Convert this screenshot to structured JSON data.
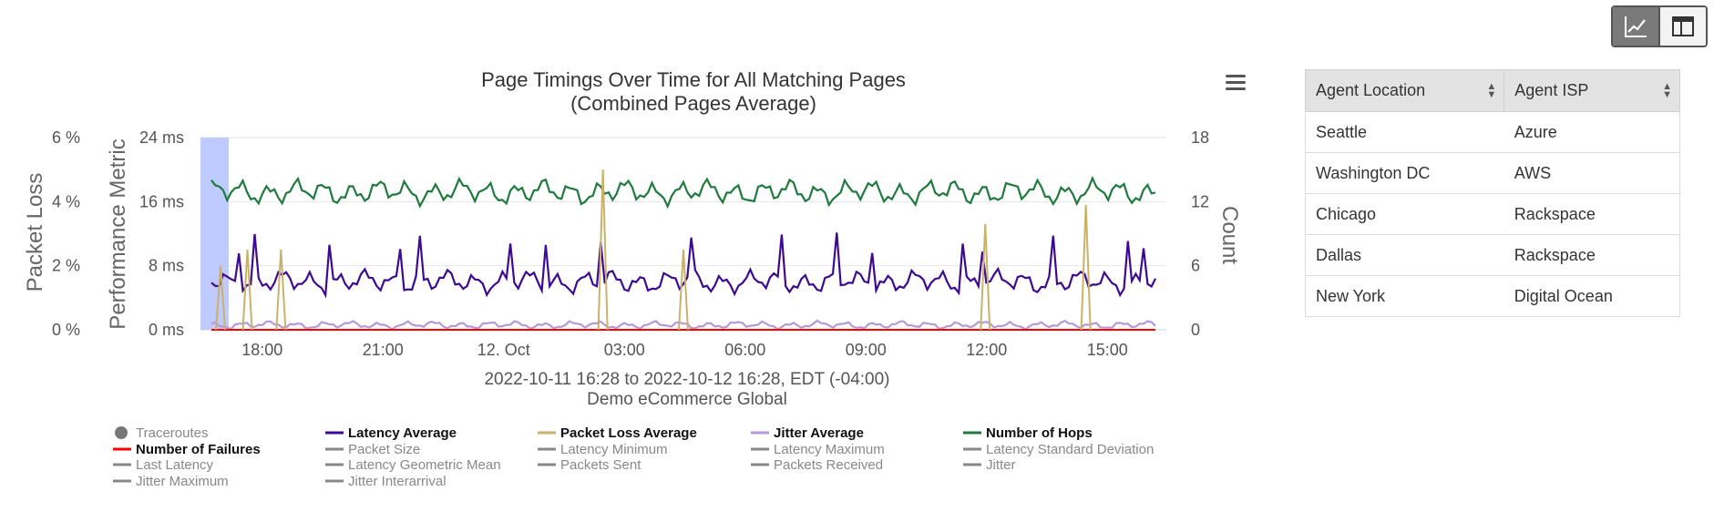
{
  "view_toggle": {
    "chart_icon": "line-chart-icon",
    "table_icon": "table-layout-icon"
  },
  "menu_icon": "hamburger-menu-icon",
  "chart_data": {
    "type": "line",
    "title": "Page Timings Over Time for All Matching Pages",
    "subtitle": "(Combined Pages Average)",
    "x_range_label": "2022-10-11 16:28 to 2022-10-12 16:28, EDT (-04:00)",
    "caption": "Demo eCommerce Global",
    "x_ticks": [
      "18:00",
      "21:00",
      "12. Oct",
      "03:00",
      "06:00",
      "09:00",
      "12:00",
      "15:00"
    ],
    "axes": {
      "packet_loss": {
        "label": "Packet Loss",
        "ticks": [
          "6 %",
          "4 %",
          "2 %",
          "0 %"
        ],
        "range": [
          0,
          6
        ]
      },
      "performance": {
        "label": "Performance Metric",
        "ticks": [
          "24 ms",
          "16 ms",
          "8 ms",
          "0 ms"
        ],
        "range": [
          0,
          24
        ]
      },
      "count": {
        "label": "Count",
        "ticks": [
          "18",
          "12",
          "6",
          "0"
        ],
        "range": [
          0,
          18
        ]
      }
    },
    "grid": true,
    "highlight_band_color": "#bfcbff",
    "series": [
      {
        "name": "Number of Hops",
        "color": "#1f7a3e",
        "axis": "count",
        "baseline": 12.9,
        "amplitude": 1.2
      },
      {
        "name": "Latency Average",
        "color": "#3d0a91",
        "axis": "performance",
        "baseline": 6.0,
        "amplitude": 1.5
      },
      {
        "name": "Jitter Average",
        "color": "#b49ad8",
        "axis": "performance",
        "baseline": 0.6,
        "amplitude": 0.5
      },
      {
        "name": "Packet Loss Average",
        "color": "#c9b16a",
        "axis": "packet_loss",
        "baseline": 0,
        "amplitude": 0
      },
      {
        "name": "Number of Failures",
        "color": "#ff0000",
        "axis": "count",
        "baseline": 0,
        "amplitude": 0
      }
    ],
    "packet_loss_spikes": [
      {
        "x": "16:58",
        "value": 2.0
      },
      {
        "x": "17:38",
        "value": 2.5
      },
      {
        "x": "18:28",
        "value": 2.5
      },
      {
        "x": "02:28",
        "value": 5.0
      },
      {
        "x": "04:28",
        "value": 2.5
      },
      {
        "x": "11:58",
        "value": 3.3
      },
      {
        "x": "14:28",
        "value": 3.9
      }
    ],
    "legend": [
      {
        "label": "Traceroutes",
        "color": "#777777",
        "marker": "circle",
        "bold": false
      },
      {
        "label": "Latency Average",
        "color": "#3d0a91",
        "marker": "line",
        "bold": true
      },
      {
        "label": "Packet Loss Average",
        "color": "#c9b16a",
        "marker": "line",
        "bold": true
      },
      {
        "label": "Jitter Average",
        "color": "#b49ad8",
        "marker": "line",
        "bold": true
      },
      {
        "label": "Number of Hops",
        "color": "#1f7a3e",
        "marker": "line",
        "bold": true
      },
      {
        "label": "Number of Failures",
        "color": "#ff0000",
        "marker": "line",
        "bold": true
      },
      {
        "label": "Packet Size",
        "color": "#888888",
        "marker": "line",
        "bold": false
      },
      {
        "label": "Latency Minimum",
        "color": "#888888",
        "marker": "line",
        "bold": false
      },
      {
        "label": "Latency Maximum",
        "color": "#888888",
        "marker": "line",
        "bold": false
      },
      {
        "label": "Latency Standard Deviation",
        "color": "#888888",
        "marker": "line",
        "bold": false
      },
      {
        "label": "Last Latency",
        "color": "#888888",
        "marker": "line",
        "bold": false
      },
      {
        "label": "Latency Geometric Mean",
        "color": "#888888",
        "marker": "line",
        "bold": false
      },
      {
        "label": "Packets Sent",
        "color": "#888888",
        "marker": "line",
        "bold": false
      },
      {
        "label": "Packets Received",
        "color": "#888888",
        "marker": "line",
        "bold": false
      },
      {
        "label": "Jitter",
        "color": "#888888",
        "marker": "line",
        "bold": false
      },
      {
        "label": "Jitter Maximum",
        "color": "#888888",
        "marker": "line",
        "bold": false
      },
      {
        "label": "Jitter Interarrival",
        "color": "#888888",
        "marker": "line",
        "bold": false
      }
    ]
  },
  "table": {
    "headers": [
      "Agent Location",
      "Agent ISP"
    ],
    "rows": [
      [
        "Seattle",
        "Azure"
      ],
      [
        "Washington DC",
        "AWS"
      ],
      [
        "Chicago",
        "Rackspace"
      ],
      [
        "Dallas",
        "Rackspace"
      ],
      [
        "New York",
        "Digital Ocean"
      ]
    ]
  }
}
